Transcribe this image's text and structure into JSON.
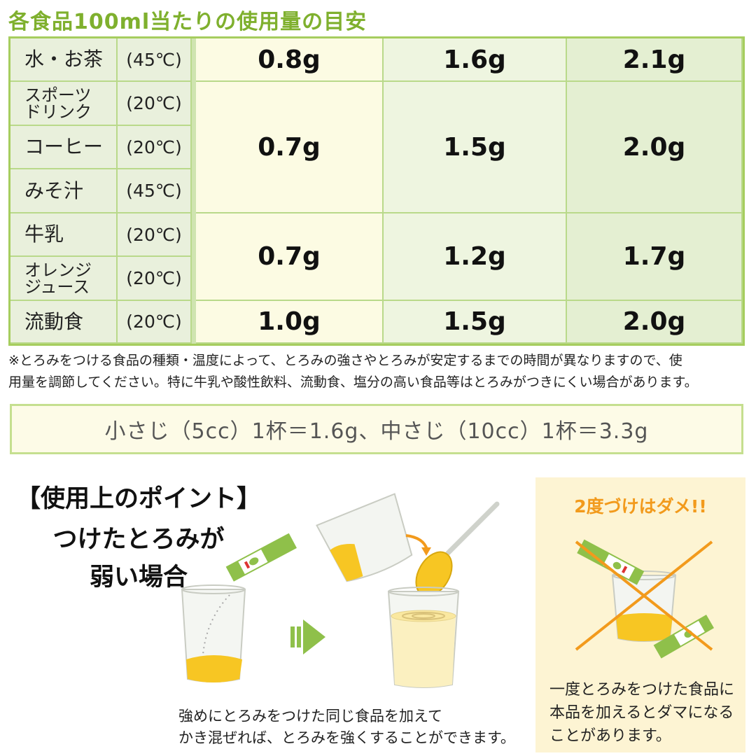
{
  "title": "各食品100ml当たりの使用量の目安",
  "rows": [
    {
      "food": "水・お茶",
      "temp": "(45℃)"
    },
    {
      "food": "スポーツ",
      "food2": "ドリンク",
      "temp": "(20℃)"
    },
    {
      "food": "コーヒー",
      "temp": "(20℃)"
    },
    {
      "food": "みそ汁",
      "temp": "(45℃)"
    },
    {
      "food": "牛乳",
      "temp": "(20℃)"
    },
    {
      "food": "オレンジ",
      "food2": "ジュース",
      "temp": "(20℃)"
    },
    {
      "food": "流動食",
      "temp": "(20℃)"
    }
  ],
  "values": {
    "water": [
      "0.8g",
      "1.6g",
      "2.1g"
    ],
    "group1": [
      "0.7g",
      "1.5g",
      "2.0g"
    ],
    "group2": [
      "0.7g",
      "1.2g",
      "1.7g"
    ],
    "liquid_food": [
      "1.0g",
      "1.5g",
      "2.0g"
    ]
  },
  "note_line1": "※とろみをつける食品の種類・温度によって、とろみの強さやとろみが安定するまでの時間が異なりますので、使",
  "note_line2": "用量を調節してください。特に牛乳や酸性飲料、流動食、塩分の高い食品等はとろみがつきにくい場合があります。",
  "spoon_text": "小さじ（5cc）1杯＝1.6g、中さじ（10cc）1杯＝3.3g",
  "point": {
    "line1": "【使用上のポイント】",
    "line2": "つけたとろみが",
    "line3": "弱い場合"
  },
  "caption_line1": "強めにとろみをつけた同じ食品を加えて",
  "caption_line2": "かき混ぜれば、とろみを強くすることができます。",
  "warning": {
    "title": "2度づけはダメ!!",
    "line1": "一度とろみをつけた食品に",
    "line2": "本品を加えるとダマになる",
    "line3": "ことがあります。"
  },
  "colors": {
    "accent_green": "#7fb02e",
    "warning_orange": "#f29a1c",
    "liquid_yellow": "#f7c623"
  }
}
